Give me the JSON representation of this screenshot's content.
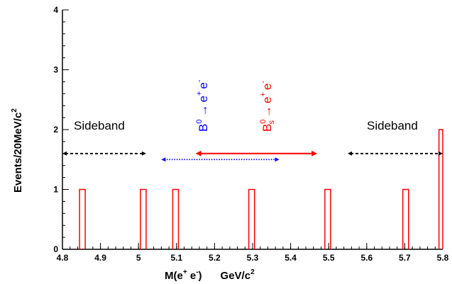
{
  "chart_data": {
    "type": "bar",
    "title": "",
    "xlabel": "M(e⁺ e⁻)    GeV/c²",
    "xlabel_parts": {
      "main": "M(e",
      "sup1": "+",
      "mid": " e",
      "sup2": "-",
      "close": ")",
      "unit": "GeV/c",
      "unit_sup": "2"
    },
    "ylabel": "Events/20MeV/c²",
    "ylabel_parts": {
      "main": "Events/20MeV/c",
      "sup": "2"
    },
    "xlim": [
      4.8,
      5.8
    ],
    "ylim": [
      0,
      4
    ],
    "bin_width": 0.02,
    "x_ticks": [
      "4.8",
      "4.9",
      "5",
      "5.1",
      "5.2",
      "5.3",
      "5.4",
      "5.5",
      "5.6",
      "5.7",
      "5.8"
    ],
    "y_ticks": [
      "0",
      "1",
      "2",
      "3",
      "4"
    ],
    "histogram": {
      "color": "#ff0000",
      "bins": [
        {
          "x_low": 4.845,
          "x_high": 4.86,
          "count": 1
        },
        {
          "x_low": 5.005,
          "x_high": 5.02,
          "count": 1
        },
        {
          "x_low": 5.09,
          "x_high": 5.105,
          "count": 1
        },
        {
          "x_low": 5.29,
          "x_high": 5.305,
          "count": 1
        },
        {
          "x_low": 5.49,
          "x_high": 5.505,
          "count": 1
        },
        {
          "x_low": 5.695,
          "x_high": 5.71,
          "count": 1
        },
        {
          "x_low": 5.79,
          "x_high": 5.8,
          "count": 2
        }
      ]
    },
    "annotations": {
      "sideband_left": {
        "text": "Sideband"
      },
      "sideband_right": {
        "text": "Sideband"
      },
      "b0_label": {
        "text": "B⁰ → e⁺ e⁻",
        "color": "#0000ff",
        "parts": [
          "B",
          "0",
          "→",
          "e",
          "+",
          "e",
          "-"
        ]
      },
      "bs_label": {
        "text": "B⁰ₛ → e⁺ e⁻",
        "color": "#ff0000",
        "parts": [
          "B",
          "0",
          "s",
          "→",
          "e",
          "+",
          "e",
          "-"
        ]
      }
    },
    "windows": [
      {
        "name": "left-sideband",
        "x_from": 4.8,
        "x_to": 5.02,
        "y": 1.6,
        "color": "#000000",
        "style": "dashed"
      },
      {
        "name": "b0-window",
        "x_from": 5.06,
        "x_to": 5.37,
        "y": 1.5,
        "color": "#0000ff",
        "style": "dotted"
      },
      {
        "name": "bs-window",
        "x_from": 5.15,
        "x_to": 5.47,
        "y": 1.6,
        "color": "#ff0000",
        "style": "solid"
      },
      {
        "name": "right-sideband",
        "x_from": 5.55,
        "x_to": 5.8,
        "y": 1.6,
        "color": "#000000",
        "style": "dashed"
      }
    ]
  }
}
